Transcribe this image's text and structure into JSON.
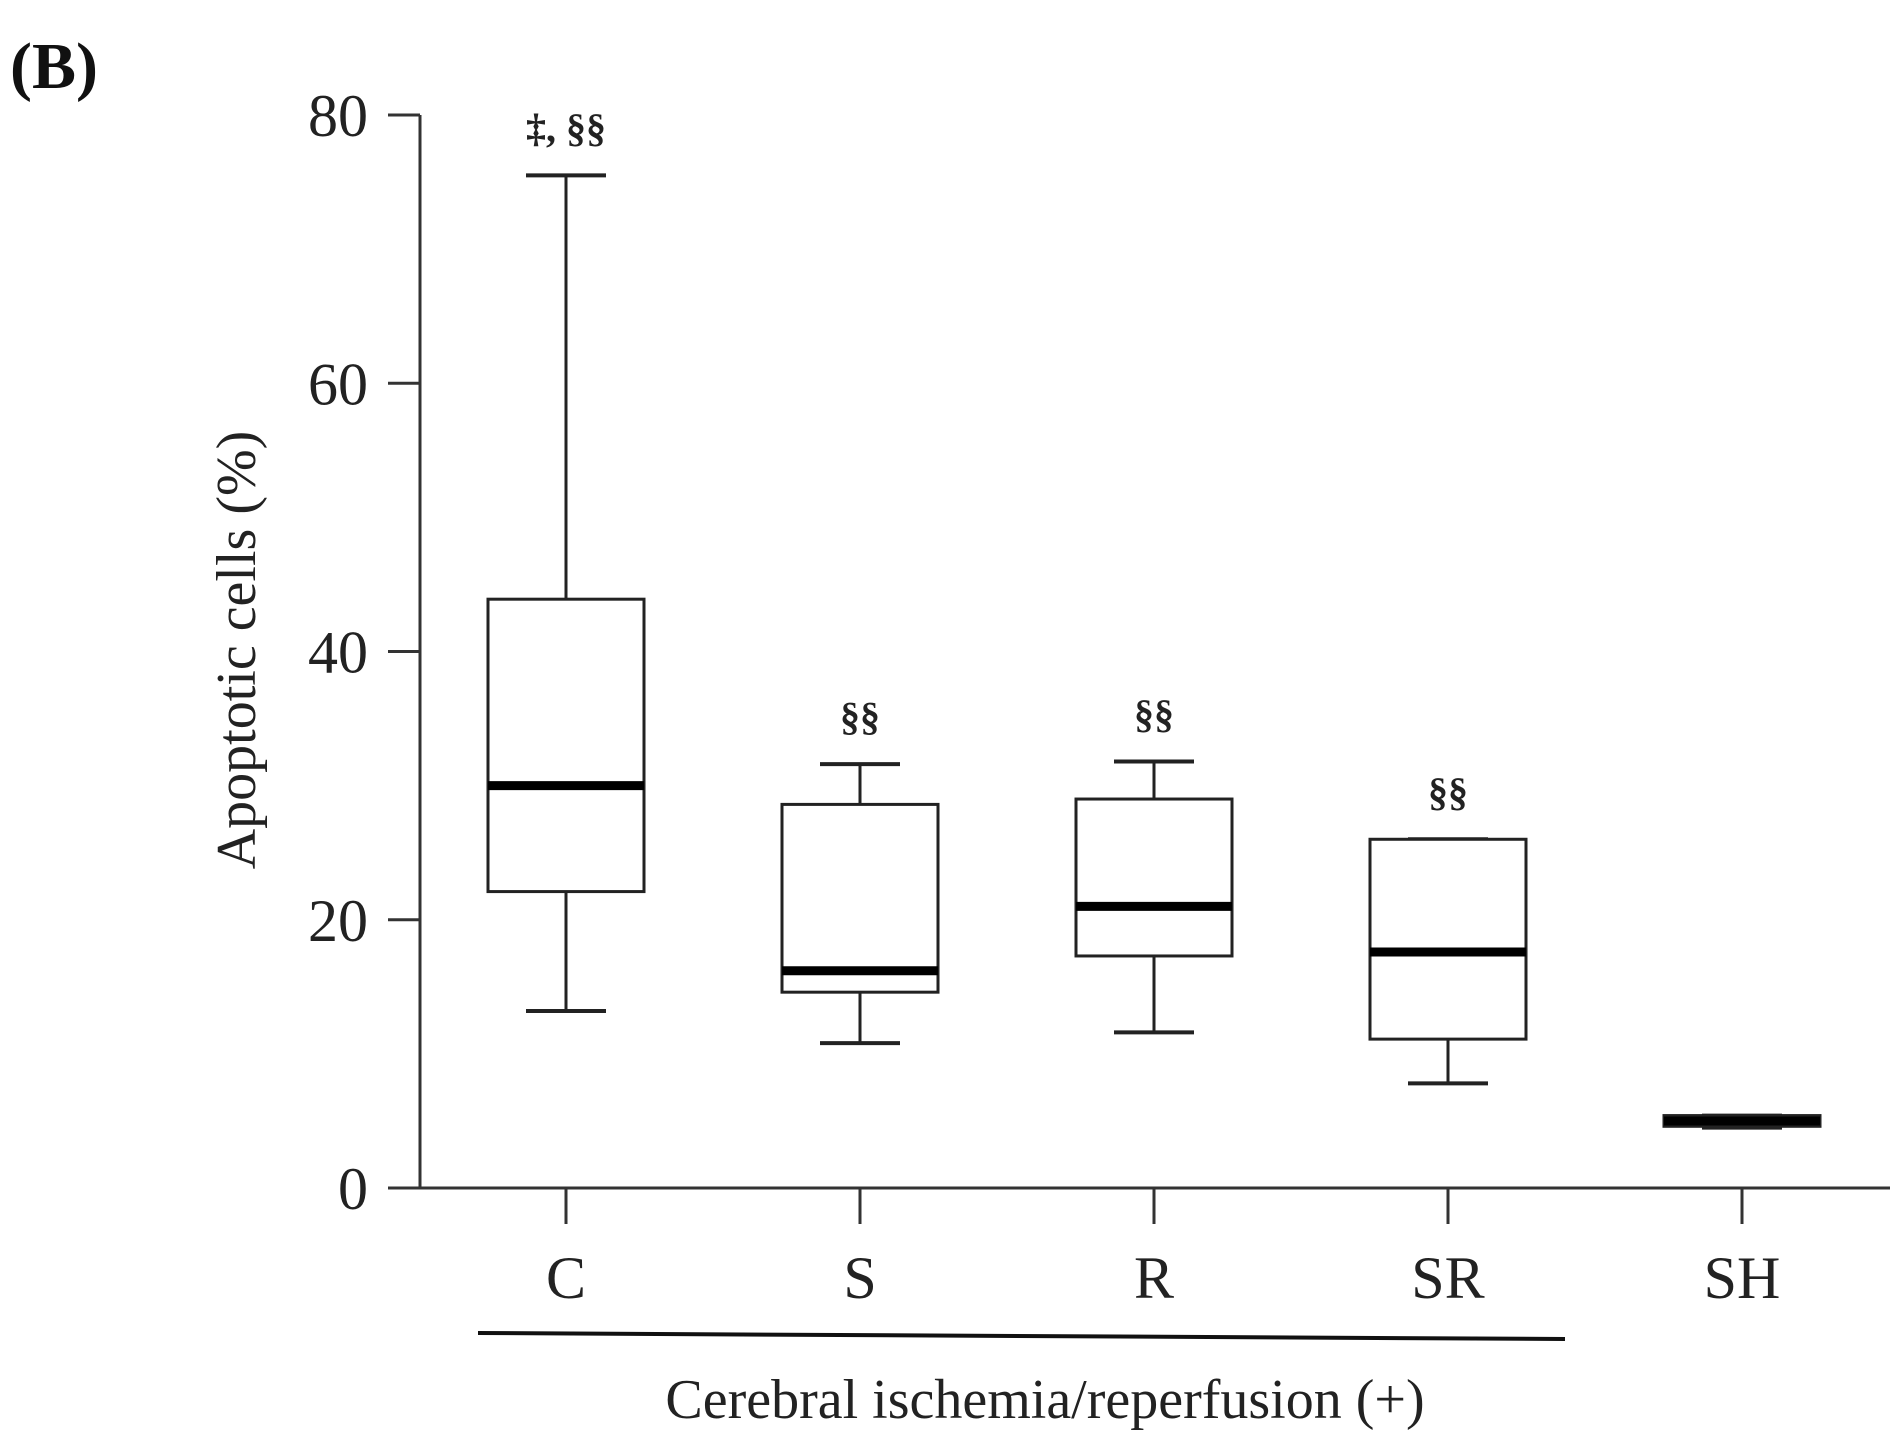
{
  "panel_label": "(B)",
  "chart_data": {
    "type": "box",
    "title": "",
    "ylabel": "Apoptotic cells (%)",
    "xlabel": "",
    "ylim": [
      0,
      80
    ],
    "yticks": [
      0,
      20,
      40,
      60,
      80
    ],
    "categories": [
      "C",
      "S",
      "R",
      "SR",
      "SH"
    ],
    "boxes": [
      {
        "name": "C",
        "min": 13.2,
        "q1": 22.1,
        "median": 30.0,
        "q3": 43.9,
        "max": 75.5,
        "annotation": "‡, §§"
      },
      {
        "name": "S",
        "min": 10.8,
        "q1": 14.6,
        "median": 16.2,
        "q3": 28.6,
        "max": 31.6,
        "annotation": "§§"
      },
      {
        "name": "R",
        "min": 11.6,
        "q1": 17.3,
        "median": 21.0,
        "q3": 29.0,
        "max": 31.8,
        "annotation": "§§"
      },
      {
        "name": "SR",
        "min": 7.8,
        "q1": 11.1,
        "median": 17.6,
        "q3": 26.0,
        "max": 26.0,
        "annotation": "§§"
      },
      {
        "name": "SH",
        "min": 4.5,
        "q1": 4.6,
        "median": 5.0,
        "q3": 5.4,
        "max": 5.4,
        "annotation": ""
      }
    ],
    "group_bracket": {
      "label": "Cerebral ischemia/reperfusion (+)",
      "spans": [
        "C",
        "S",
        "R",
        "SR"
      ]
    }
  }
}
